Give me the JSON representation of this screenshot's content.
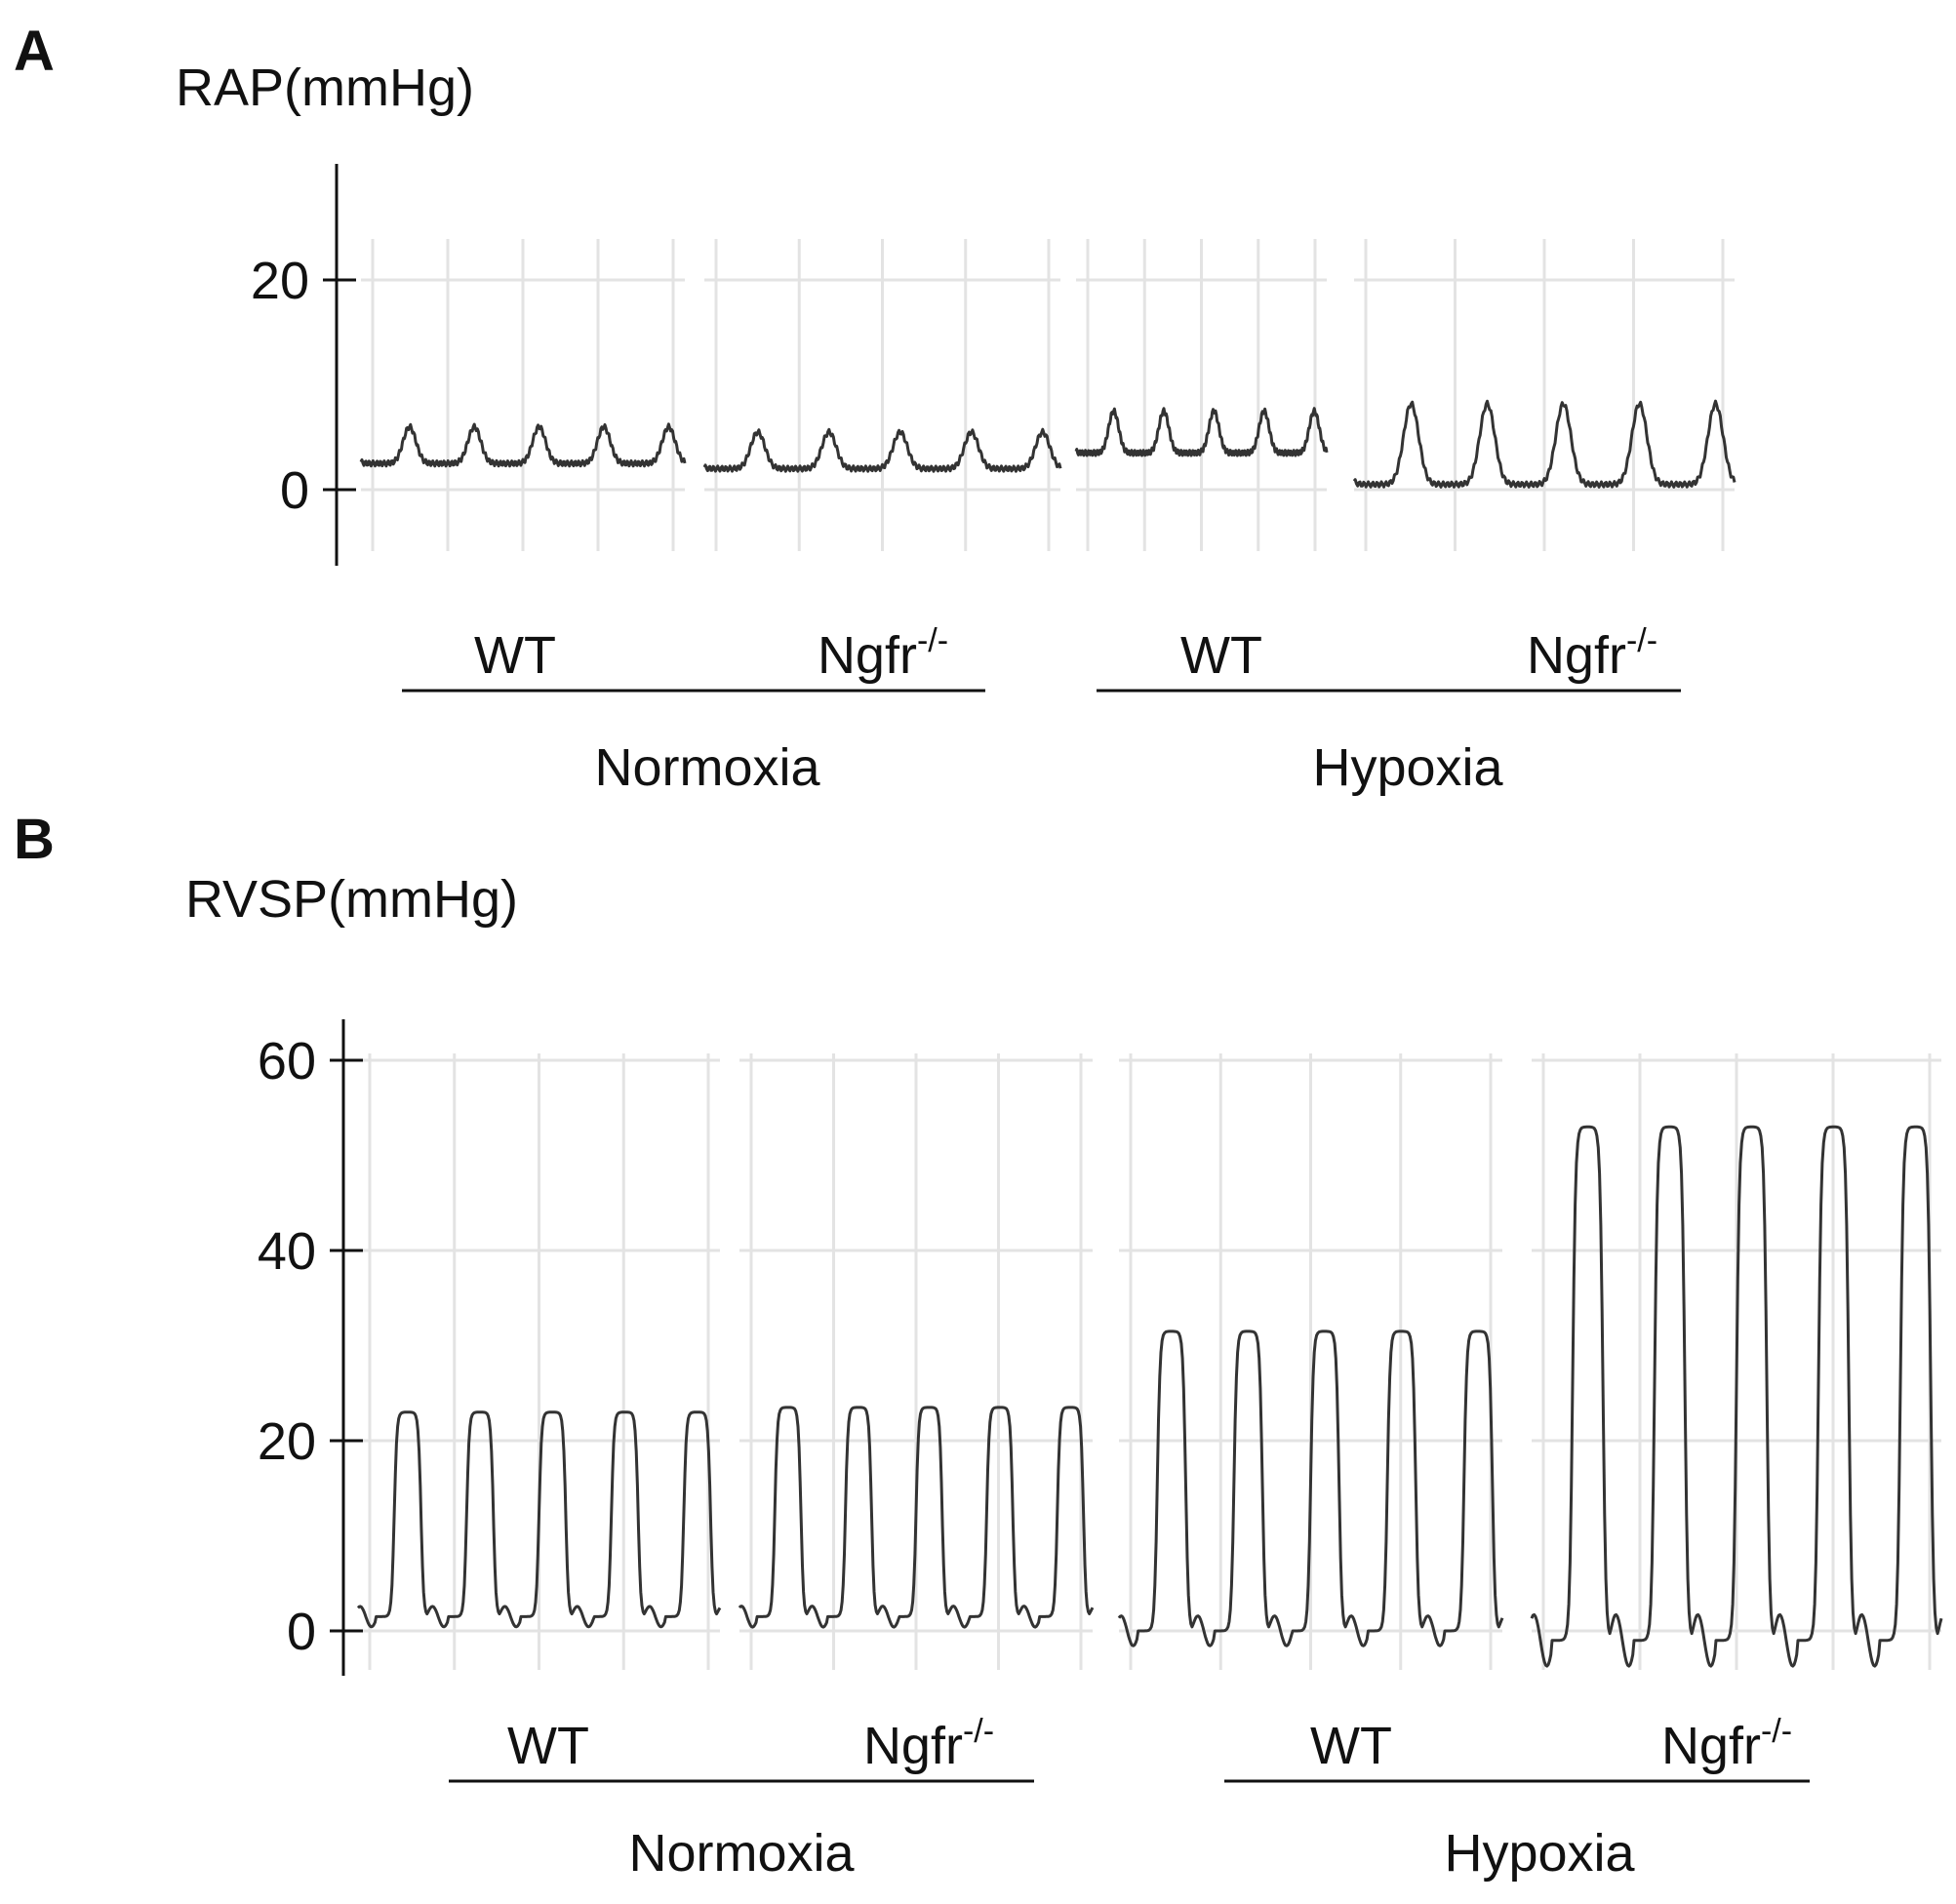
{
  "chart_data": [
    {
      "panel": "A",
      "type": "line",
      "ylabel": "RAP(mmHg)",
      "ylim": [
        -7,
        30
      ],
      "yticks": [
        0,
        20
      ],
      "groups": [
        {
          "condition": "Normoxia",
          "genotype": "WT",
          "beats": 5,
          "baseline": 2.5,
          "peak": 6
        },
        {
          "condition": "Normoxia",
          "genotype": "Ngfr",
          "beats": 5,
          "baseline": 2.0,
          "peak": 5.5
        },
        {
          "condition": "Hypoxia",
          "genotype": "WT",
          "beats": 5,
          "baseline": 3.5,
          "peak": 7.5
        },
        {
          "condition": "Hypoxia",
          "genotype": "Ngfr",
          "beats": 5,
          "baseline": 0.5,
          "peak": 8.2
        }
      ],
      "conditions": [
        "Normoxia",
        "Hypoxia"
      ]
    },
    {
      "panel": "B",
      "type": "line",
      "ylabel": "RVSP(mmHg)",
      "ylim": [
        -4,
        62
      ],
      "yticks": [
        0,
        20,
        40,
        60
      ],
      "groups": [
        {
          "condition": "Normoxia",
          "genotype": "WT",
          "beats": 5,
          "baseline": 1.5,
          "peak": 23
        },
        {
          "condition": "Normoxia",
          "genotype": "Ngfr",
          "beats": 5,
          "baseline": 1.5,
          "peak": 23.5
        },
        {
          "condition": "Hypoxia",
          "genotype": "WT",
          "beats": 5,
          "baseline": 0,
          "peak": 31.5
        },
        {
          "condition": "Hypoxia",
          "genotype": "Ngfr",
          "beats": 5,
          "baseline": -1,
          "peak": 53
        }
      ],
      "conditions": [
        "Normoxia",
        "Hypoxia"
      ]
    }
  ],
  "labels": {
    "panel_a": "A",
    "panel_b": "B",
    "superscript": "-/-"
  }
}
